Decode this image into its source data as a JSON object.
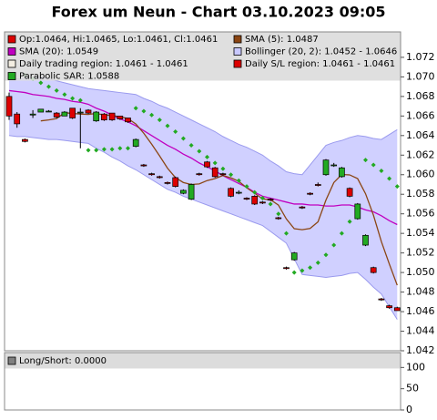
{
  "chart_data": [
    {
      "type": "candlestick",
      "title": "Forex um Neun - Chart 03.10.2023 09:05",
      "candles": {
        "name": "Op:1.0464, Hi:1.0465, Lo:1.0461, Cl:1.0461",
        "up_color": "#22aa22",
        "down_color": "#dd0000",
        "open": [
          1.068,
          1.0662,
          1.0636,
          1.0661,
          1.0664,
          1.0665,
          1.0663,
          1.066,
          1.0668,
          1.0664,
          1.0666,
          1.0655,
          1.0662,
          1.0663,
          1.066,
          1.0658,
          1.0629,
          1.061,
          1.0601,
          1.0598,
          1.0592,
          1.0597,
          1.0581,
          1.0575,
          1.0601,
          1.0613,
          1.0607,
          1.0601,
          1.0586,
          1.0582,
          1.0576,
          1.0578,
          1.0572,
          1.0575,
          1.0556,
          1.0505,
          1.0513,
          1.0567,
          1.0581,
          1.059,
          1.06,
          1.061,
          1.0598,
          1.0586,
          1.0555,
          1.0528,
          1.0505,
          1.0473,
          1.0466,
          1.0464
        ],
        "high": [
          1.0684,
          1.0664,
          1.0637,
          1.0666,
          1.0667,
          1.0666,
          1.0664,
          1.0665,
          1.0668,
          1.0668,
          1.0667,
          1.0665,
          1.0663,
          1.0663,
          1.066,
          1.0658,
          1.0637,
          1.0611,
          1.0602,
          1.0599,
          1.0593,
          1.0598,
          1.0585,
          1.0591,
          1.0602,
          1.0614,
          1.0608,
          1.0602,
          1.0587,
          1.0584,
          1.0577,
          1.0579,
          1.0573,
          1.0576,
          1.0557,
          1.0506,
          1.0521,
          1.0568,
          1.0582,
          1.0592,
          1.0616,
          1.0612,
          1.0608,
          1.0587,
          1.0571,
          1.0539,
          1.0506,
          1.0474,
          1.0467,
          1.0465
        ],
        "low": [
          1.0656,
          1.0648,
          1.0633,
          1.0658,
          1.0664,
          1.0664,
          1.0658,
          1.066,
          1.0657,
          1.0627,
          1.0662,
          1.0654,
          1.0655,
          1.0655,
          1.0656,
          1.0653,
          1.0628,
          1.0608,
          1.0599,
          1.0596,
          1.059,
          1.0587,
          1.058,
          1.0574,
          1.0599,
          1.0607,
          1.0597,
          1.0599,
          1.0577,
          1.058,
          1.0574,
          1.0569,
          1.057,
          1.0573,
          1.0554,
          1.0503,
          1.0512,
          1.0565,
          1.0579,
          1.0588,
          1.0599,
          1.0608,
          1.0597,
          1.0577,
          1.0554,
          1.0527,
          1.0499,
          1.0471,
          1.0463,
          1.0461
        ],
        "close": [
          1.066,
          1.0652,
          1.0634,
          1.0662,
          1.0667,
          1.0665,
          1.0659,
          1.0664,
          1.0658,
          1.0664,
          1.0663,
          1.0664,
          1.0656,
          1.0656,
          1.0657,
          1.0654,
          1.0636,
          1.0609,
          1.06,
          1.0597,
          1.0591,
          1.0588,
          1.0584,
          1.059,
          1.06,
          1.0608,
          1.0598,
          1.06,
          1.0578,
          1.0582,
          1.0575,
          1.057,
          1.0571,
          1.0574,
          1.0555,
          1.0504,
          1.052,
          1.0566,
          1.058,
          1.0589,
          1.0615,
          1.061,
          1.0607,
          1.0578,
          1.057,
          1.0538,
          1.05,
          1.0472,
          1.0464,
          1.0461
        ]
      },
      "series": [
        {
          "type": "band",
          "name": "Bollinger (20, 2): 1.0452 - 1.0646",
          "color": "#c8c8ff",
          "upper": [
            1.0697,
            1.0698,
            1.0698,
            1.0699,
            1.07,
            1.0698,
            1.0696,
            1.0694,
            1.0692,
            1.069,
            1.0688,
            1.0687,
            1.0686,
            1.0685,
            1.0684,
            1.0683,
            1.0682,
            1.0678,
            1.0675,
            1.0671,
            1.0668,
            1.0664,
            1.066,
            1.0656,
            1.0652,
            1.0648,
            1.0644,
            1.0639,
            1.0635,
            1.0631,
            1.0628,
            1.0624,
            1.062,
            1.0614,
            1.0609,
            1.0603,
            1.0601,
            1.06,
            1.061,
            1.062,
            1.063,
            1.0633,
            1.0635,
            1.0638,
            1.064,
            1.0639,
            1.0637,
            1.0636,
            1.0641,
            1.0646
          ],
          "lower": [
            1.064,
            1.0639,
            1.0639,
            1.0638,
            1.0637,
            1.0636,
            1.0636,
            1.0635,
            1.0634,
            1.0633,
            1.0632,
            1.0627,
            1.0623,
            1.0618,
            1.0614,
            1.0609,
            1.0605,
            1.06,
            1.0595,
            1.059,
            1.0585,
            1.0582,
            1.0578,
            1.0575,
            1.0572,
            1.0569,
            1.0566,
            1.0563,
            1.056,
            1.0557,
            1.0554,
            1.0551,
            1.0548,
            1.0542,
            1.0536,
            1.053,
            1.0514,
            1.0498,
            1.0497,
            1.0496,
            1.0495,
            1.0496,
            1.0497,
            1.0499,
            1.05,
            1.0493,
            1.0485,
            1.0478,
            1.0465,
            1.0452
          ]
        },
        {
          "type": "line",
          "name": "SMA (20): 1.0549",
          "color": "#c000c0",
          "values": [
            1.0686,
            1.0685,
            1.0684,
            1.0682,
            1.0681,
            1.068,
            1.0678,
            1.0677,
            1.0675,
            1.0674,
            1.0672,
            1.0668,
            1.0665,
            1.0661,
            1.0657,
            1.0654,
            1.065,
            1.0645,
            1.064,
            1.0635,
            1.063,
            1.0626,
            1.0621,
            1.0617,
            1.0612,
            1.0608,
            1.0604,
            1.0599,
            1.0595,
            1.0591,
            1.0587,
            1.0582,
            1.0578,
            1.0576,
            1.0574,
            1.0572,
            1.057,
            1.057,
            1.0569,
            1.0569,
            1.0568,
            1.0568,
            1.0569,
            1.0569,
            1.0567,
            1.0564,
            1.0562,
            1.0558,
            1.0553,
            1.0549
          ]
        },
        {
          "type": "line",
          "name": "SMA (5): 1.0487",
          "color": "#8b4513",
          "values": [
            null,
            null,
            null,
            null,
            1.0655,
            1.0656,
            1.06574,
            1.06634,
            1.06626,
            1.0662,
            1.06616,
            1.06626,
            1.0661,
            1.06606,
            1.06592,
            1.06574,
            1.06518,
            1.06424,
            1.06312,
            1.06192,
            1.06066,
            1.0597,
            1.0592,
            1.059,
            1.05906,
            1.0594,
            1.0596,
            1.05992,
            1.05968,
            1.05932,
            1.05866,
            1.0581,
            1.05752,
            1.05744,
            1.0569,
            1.05548,
            1.05448,
            1.05438,
            1.0545,
            1.05518,
            1.0574,
            1.0592,
            1.06002,
            1.05998,
            1.0596,
            1.05806,
            1.05586,
            1.05316,
            1.05088,
            1.0487
          ]
        },
        {
          "type": "dots",
          "name": "Parabolic SAR: 1.0588",
          "color": "#22aa22",
          "values": [
            null,
            null,
            1.0702,
            1.0698,
            1.0694,
            1.069,
            1.0686,
            1.0682,
            1.0678,
            1.0676,
            1.0625,
            1.0625,
            1.0626,
            1.0626,
            1.0627,
            1.0627,
            1.0668,
            1.0665,
            1.0661,
            1.0656,
            1.065,
            1.0644,
            1.0637,
            1.063,
            1.0624,
            1.0618,
            1.0612,
            1.0606,
            1.06,
            1.0594,
            1.0588,
            1.0582,
            1.0576,
            1.057,
            1.056,
            1.054,
            1.05,
            1.0502,
            1.0505,
            1.051,
            1.0518,
            1.0528,
            1.054,
            1.0552,
            1.056,
            1.0615,
            1.061,
            1.0604,
            1.0596,
            1.0588
          ]
        }
      ],
      "extra_legend": [
        {
          "label": "Daily trading region: 1.0461 - 1.0461",
          "color": "#f3eee2"
        },
        {
          "label": "Daily S/L region: 1.0461 - 1.0461",
          "color": "#dd0000"
        }
      ],
      "ylim": [
        1.042,
        1.0746
      ],
      "yticks": [
        1.042,
        1.044,
        1.046,
        1.048,
        {
          "value": 1.05,
          "label": "1.050"
        },
        1.052,
        1.054,
        1.056,
        1.058,
        {
          "value": 1.06,
          "label": "1.060"
        },
        1.062,
        1.064,
        1.066,
        1.068,
        {
          "value": 1.07,
          "label": "1.070"
        },
        1.072
      ],
      "grid": false
    },
    {
      "type": "indicator",
      "label": "Long/Short: 0.0000",
      "color": "#808080",
      "ylim": [
        0,
        135
      ],
      "yticks": [
        0,
        50,
        100
      ]
    }
  ]
}
